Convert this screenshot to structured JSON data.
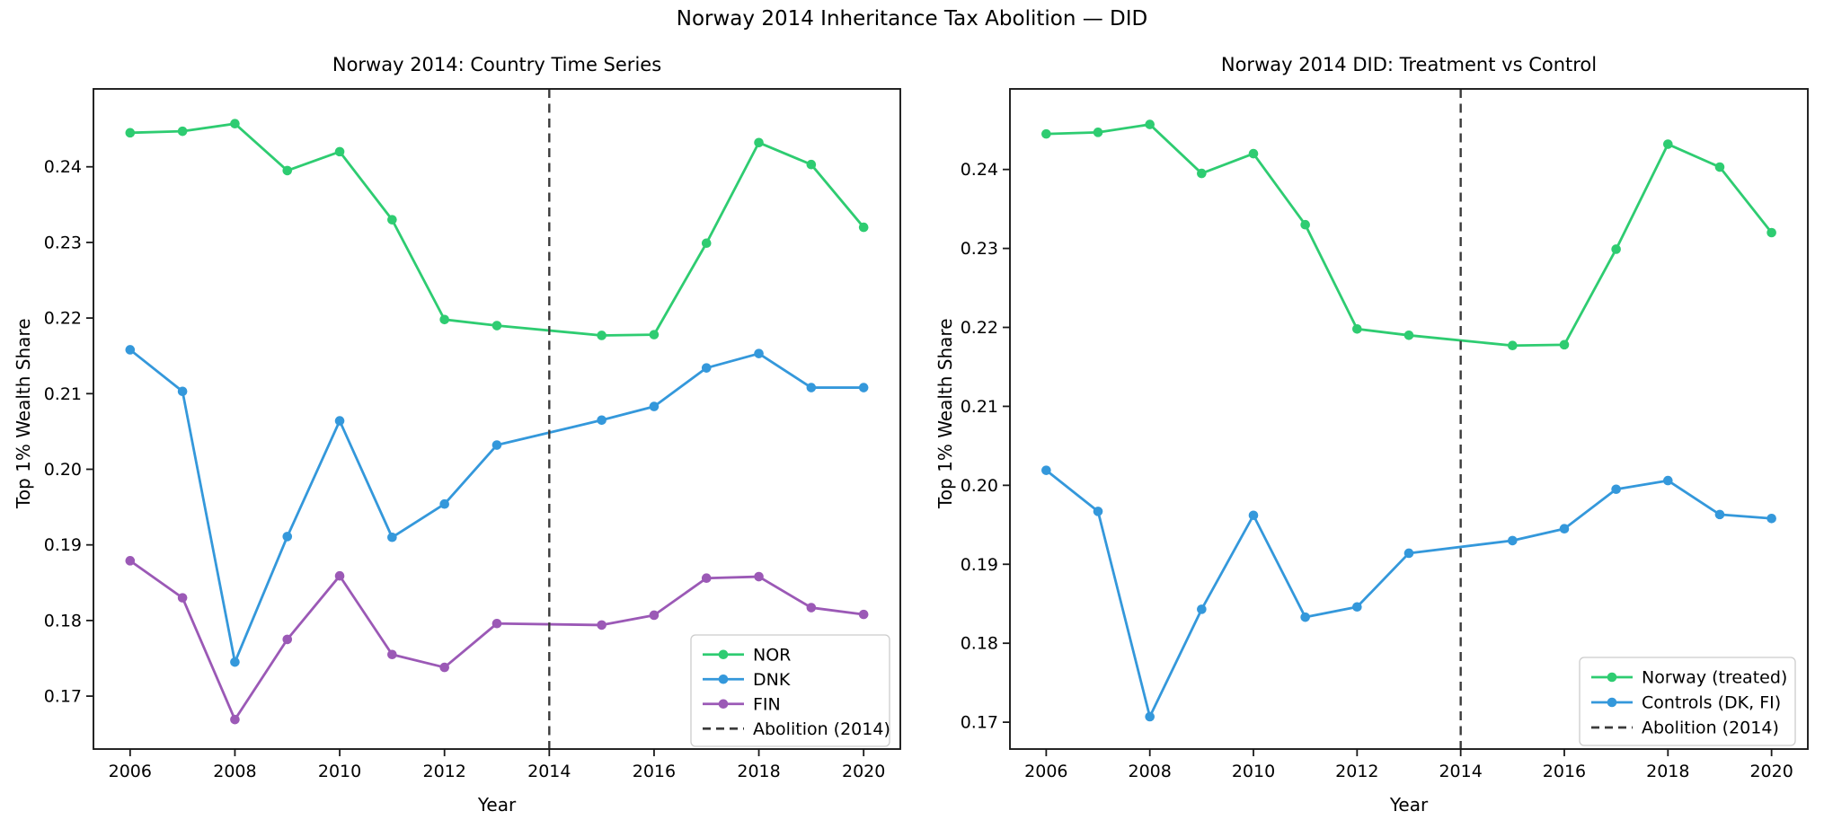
{
  "figure": {
    "suptitle": "Norway 2014 Inheritance Tax Abolition — DID"
  },
  "colors": {
    "treated_green": "#2ecc71",
    "control_blue": "#3498db",
    "finland_purple": "#9b59b6",
    "abolition_dash": "#3b3b3b",
    "spine": "#1a1a1a",
    "legend_border": "#cccccc"
  },
  "chart_data": [
    {
      "type": "line",
      "title": "Norway 2014: Country Time Series",
      "xlabel": "Year",
      "ylabel": "Top 1% Wealth Share",
      "x": [
        2006,
        2007,
        2008,
        2009,
        2010,
        2011,
        2012,
        2013,
        2015,
        2016,
        2017,
        2018,
        2019,
        2020
      ],
      "xticks": [
        2006,
        2008,
        2010,
        2012,
        2014,
        2016,
        2018,
        2020
      ],
      "yticks": [
        0.17,
        0.18,
        0.19,
        0.2,
        0.21,
        0.22,
        0.23,
        0.24
      ],
      "xlim": [
        2005.3,
        2020.7
      ],
      "ylim": [
        0.163,
        0.2503
      ],
      "grid": false,
      "legend_position": "lower right",
      "series": [
        {
          "name": "NOR",
          "color": "#2ecc71",
          "values": [
            0.2445,
            0.2447,
            0.2457,
            0.2395,
            0.242,
            0.233,
            0.2198,
            0.219,
            0.2177,
            0.2178,
            0.2299,
            0.2432,
            0.2403,
            0.232
          ]
        },
        {
          "name": "DNK",
          "color": "#3498db",
          "values": [
            0.2158,
            0.2103,
            0.1745,
            0.1911,
            0.2064,
            0.191,
            0.1954,
            0.2032,
            0.2065,
            0.2083,
            0.2134,
            0.2153,
            0.2108,
            0.2108
          ]
        },
        {
          "name": "FIN",
          "color": "#9b59b6",
          "values": [
            0.1879,
            0.183,
            0.1669,
            0.1775,
            0.1859,
            0.1755,
            0.1738,
            0.1796,
            0.1794,
            0.1807,
            0.1856,
            0.1858,
            0.1817,
            0.1808
          ]
        }
      ],
      "vline": {
        "x": 2014,
        "label": "Abolition (2014)",
        "style": "dashed",
        "color": "#3b3b3b"
      }
    },
    {
      "type": "line",
      "title": "Norway 2014 DID: Treatment vs Control",
      "xlabel": "Year",
      "ylabel": "Top 1% Wealth Share",
      "x": [
        2006,
        2007,
        2008,
        2009,
        2010,
        2011,
        2012,
        2013,
        2015,
        2016,
        2017,
        2018,
        2019,
        2020
      ],
      "xticks": [
        2006,
        2008,
        2010,
        2012,
        2014,
        2016,
        2018,
        2020
      ],
      "yticks": [
        0.17,
        0.18,
        0.19,
        0.2,
        0.21,
        0.22,
        0.23,
        0.24
      ],
      "xlim": [
        2005.3,
        2020.7
      ],
      "ylim": [
        0.1666,
        0.2502
      ],
      "grid": false,
      "legend_position": "lower right",
      "series": [
        {
          "name": "Norway (treated)",
          "color": "#2ecc71",
          "values": [
            0.2445,
            0.2447,
            0.2457,
            0.2395,
            0.242,
            0.233,
            0.2198,
            0.219,
            0.2177,
            0.2178,
            0.2299,
            0.2432,
            0.2403,
            0.232
          ]
        },
        {
          "name": "Controls (DK, FI)",
          "color": "#3498db",
          "values": [
            0.2019,
            0.1967,
            0.1707,
            0.1843,
            0.1962,
            0.1833,
            0.1846,
            0.1914,
            0.193,
            0.1945,
            0.1995,
            0.2006,
            0.1963,
            0.1958
          ]
        }
      ],
      "vline": {
        "x": 2014,
        "label": "Abolition (2014)",
        "style": "dashed",
        "color": "#3b3b3b"
      }
    }
  ]
}
